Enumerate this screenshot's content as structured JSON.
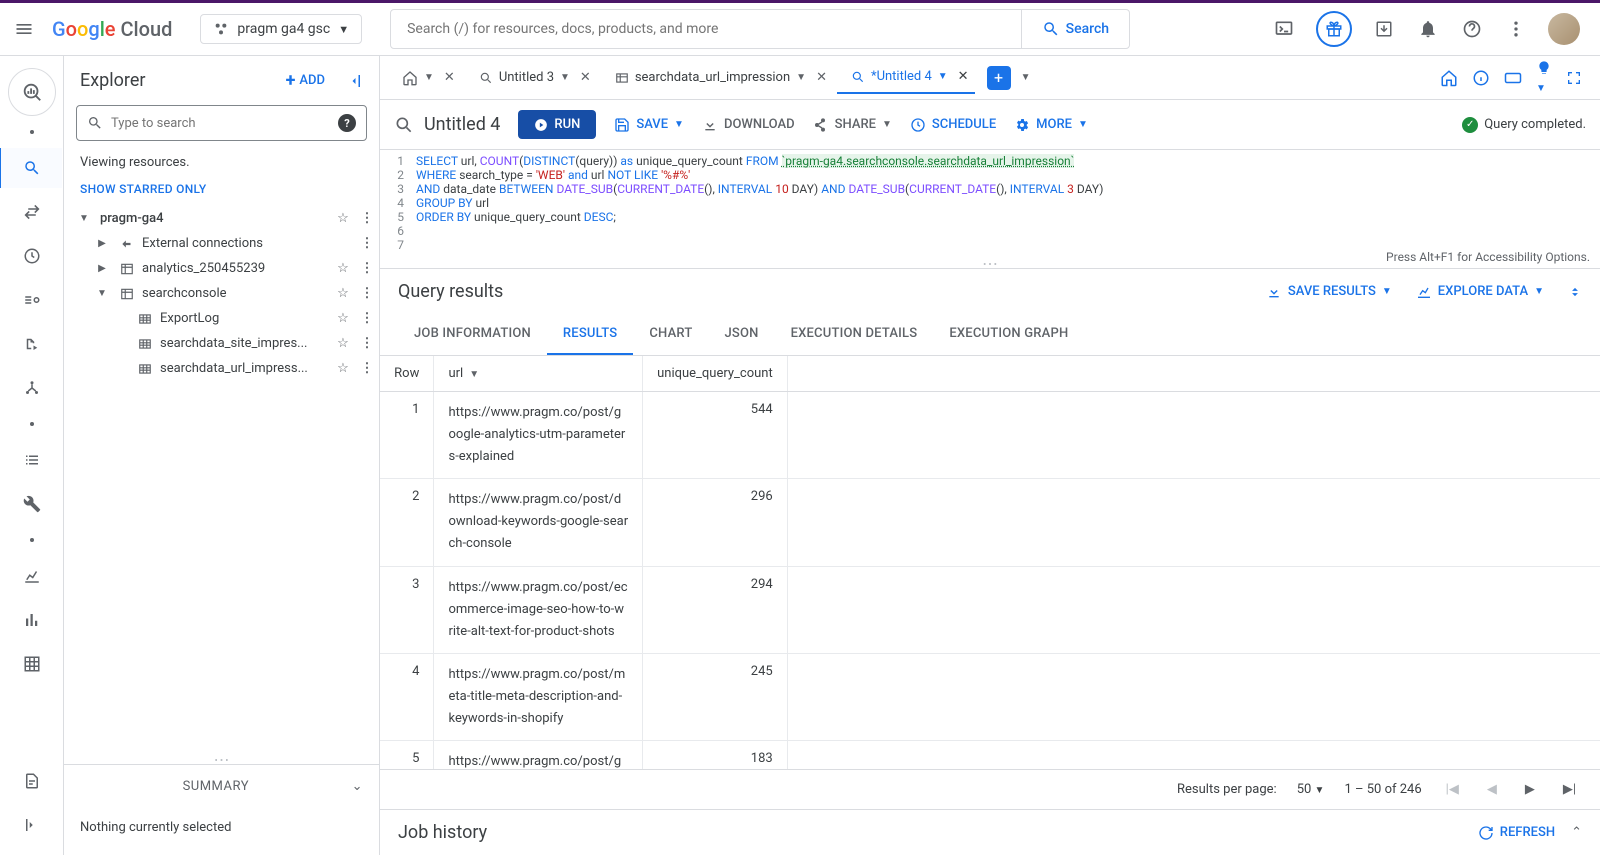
{
  "colors": {
    "primary": "#1a73e8",
    "primary_dark": "#174ea6",
    "border": "#dadce0",
    "text": "#3c4043",
    "muted": "#5f6368",
    "success": "#1e8e3e",
    "kw": "#1a73e8",
    "fn": "#7c4dff",
    "str": "#c5221f",
    "tbl": "#188038"
  },
  "header": {
    "product": "Google Cloud",
    "project": "pragm ga4 gsc",
    "search_placeholder": "Search (/) for resources, docs, products, and more",
    "search_button": "Search"
  },
  "explorer": {
    "title": "Explorer",
    "add": "ADD",
    "search_placeholder": "Type to search",
    "viewing": "Viewing resources.",
    "starred": "SHOW STARRED ONLY",
    "tree": {
      "project": "pragm-ga4",
      "external": "External connections",
      "dataset1": "analytics_250455239",
      "dataset2": "searchconsole",
      "tables": [
        "ExportLog",
        "searchdata_site_impres...",
        "searchdata_url_impress..."
      ]
    },
    "summary_title": "SUMMARY",
    "summary_body": "Nothing currently selected"
  },
  "tabs": {
    "home": "",
    "t1": "Untitled 3",
    "t2": "searchdata_url_impression",
    "t3": "*Untitled 4"
  },
  "toolbar": {
    "title": "Untitled 4",
    "run": "RUN",
    "save": "SAVE",
    "download": "DOWNLOAD",
    "share": "SHARE",
    "schedule": "SCHEDULE",
    "more": "MORE",
    "status": "Query completed."
  },
  "query": {
    "line_count": 7,
    "table_ref": "`pragm-ga4.searchconsole.searchdata_url_impression`",
    "interval_a": "10",
    "interval_b": "3",
    "like_pattern": "'%#%'",
    "search_type_val": "'WEB'",
    "alt_hint": "Press Alt+F1 for Accessibility Options."
  },
  "results": {
    "title": "Query results",
    "save_results": "SAVE RESULTS",
    "explore": "EXPLORE DATA",
    "tabs": [
      "JOB INFORMATION",
      "RESULTS",
      "CHART",
      "JSON",
      "EXECUTION DETAILS",
      "EXECUTION GRAPH"
    ],
    "active_tab": "RESULTS",
    "columns": [
      "Row",
      "url",
      "unique_query_count"
    ],
    "rows": [
      {
        "n": 1,
        "url": "https://www.pragm.co/post/google-analytics-utm-parameters-explained",
        "count": 544
      },
      {
        "n": 2,
        "url": "https://www.pragm.co/post/download-keywords-google-search-console",
        "count": 296
      },
      {
        "n": 3,
        "url": "https://www.pragm.co/post/ecommerce-image-seo-how-to-write-alt-text-for-product-shots",
        "count": 294
      },
      {
        "n": 4,
        "url": "https://www.pragm.co/post/meta-title-meta-description-and-keywords-in-shopify",
        "count": 245
      },
      {
        "n": 5,
        "url": "https://www.pragm.co/post/gu",
        "count": 183
      }
    ]
  },
  "pager": {
    "rpp_label": "Results per page:",
    "rpp_value": "50",
    "range": "1 – 50 of 246"
  },
  "job_history": {
    "title": "Job history",
    "refresh": "REFRESH"
  }
}
